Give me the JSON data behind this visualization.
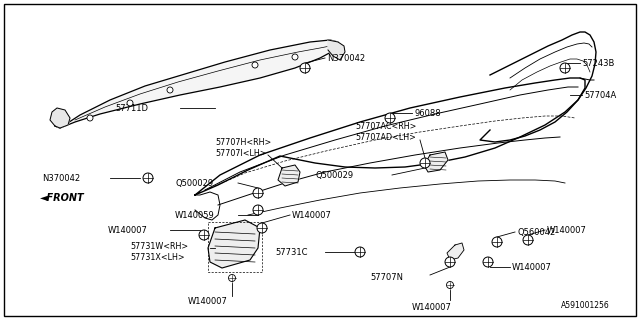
{
  "background_color": "#ffffff",
  "border_color": "#000000",
  "diagram_id": "A591001256",
  "fig_label": "A591001256",
  "lc": "#000000",
  "fs": 6.0,
  "front_label": "◄FRONT"
}
